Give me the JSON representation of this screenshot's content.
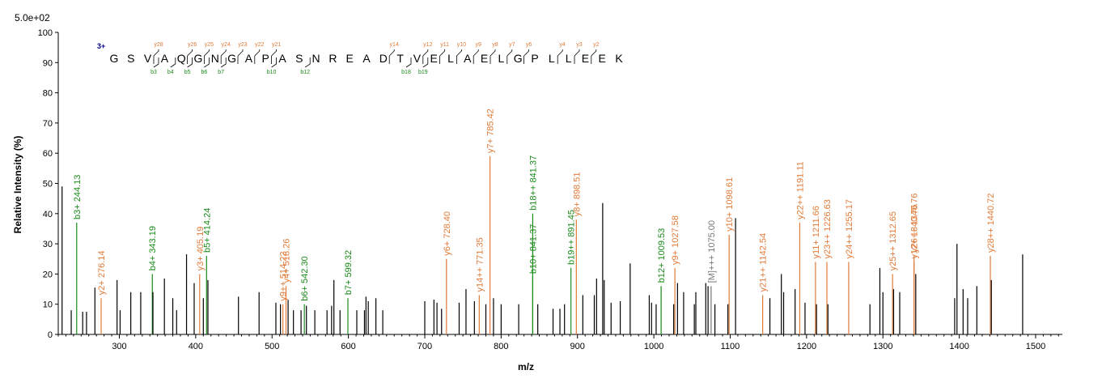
{
  "colors": {
    "y_ion": "#e07b39",
    "b_ion": "#1a8a1a",
    "other": "#000000",
    "precursor": "#777777",
    "charge": "#00008b"
  },
  "chart_data": {
    "type": "bar",
    "scale_label": "5.0e+02",
    "xlabel": "m/z",
    "ylabel": "Relative   Intensity (%)",
    "xlim": [
      220,
      1535
    ],
    "ylim": [
      0,
      100
    ],
    "x_ticks": [
      300,
      400,
      500,
      600,
      700,
      800,
      900,
      1000,
      1100,
      1200,
      1300,
      1400,
      1500
    ],
    "y_ticks": [
      0,
      10,
      20,
      30,
      40,
      50,
      60,
      70,
      80,
      90,
      100
    ],
    "peptide": {
      "charge_label": "3+",
      "sequence": [
        "G",
        "S",
        "V",
        "A",
        "Q",
        "G",
        "N",
        "G",
        "A",
        "P",
        "A",
        "S",
        "N",
        "R",
        "E",
        "A",
        "D",
        "T",
        "V",
        "E",
        "L",
        "A",
        "E",
        "L",
        "G",
        "P",
        "L",
        "L",
        "E",
        "E",
        "K"
      ],
      "y_ions": [
        {
          "after": 3,
          "label": "y28"
        },
        {
          "after": 5,
          "label": "y26"
        },
        {
          "after": 6,
          "label": "y25"
        },
        {
          "after": 7,
          "label": "y24"
        },
        {
          "after": 8,
          "label": "y23"
        },
        {
          "after": 9,
          "label": "y22"
        },
        {
          "after": 10,
          "label": "y21"
        },
        {
          "after": 17,
          "label": "y14"
        },
        {
          "after": 19,
          "label": "y12"
        },
        {
          "after": 20,
          "label": "y11"
        },
        {
          "after": 21,
          "label": "y10"
        },
        {
          "after": 22,
          "label": "y9"
        },
        {
          "after": 23,
          "label": "y8"
        },
        {
          "after": 24,
          "label": "y7"
        },
        {
          "after": 25,
          "label": "y6"
        },
        {
          "after": 27,
          "label": "y4"
        },
        {
          "after": 28,
          "label": "y3"
        },
        {
          "after": 29,
          "label": "y2"
        }
      ],
      "b_ions": [
        {
          "after": 3,
          "label": "b3"
        },
        {
          "after": 4,
          "label": "b4"
        },
        {
          "after": 5,
          "label": "b5"
        },
        {
          "after": 6,
          "label": "b6"
        },
        {
          "after": 7,
          "label": "b7"
        },
        {
          "after": 10,
          "label": "b10"
        },
        {
          "after": 12,
          "label": "b12"
        },
        {
          "after": 18,
          "label": "b18"
        },
        {
          "after": 19,
          "label": "b19"
        }
      ]
    },
    "series": [
      {
        "name": "y ions",
        "kind": "y",
        "points": [
          {
            "x": 276.14,
            "y": 12,
            "label": "y2+ 276.14"
          },
          {
            "x": 405.19,
            "y": 20,
            "label": "y3+ 405.19"
          },
          {
            "x": 514.22,
            "y": 10,
            "label": "y9++ 514.22"
          },
          {
            "x": 518.26,
            "y": 16,
            "label": "y4+ 518.26"
          },
          {
            "x": 728.4,
            "y": 25,
            "label": "y6+ 728.40"
          },
          {
            "x": 771.35,
            "y": 13,
            "label": "y14++ 771.35"
          },
          {
            "x": 785.42,
            "y": 59,
            "label": "y7+ 785.42"
          },
          {
            "x": 898.51,
            "y": 38,
            "label": "y8+ 898.51"
          },
          {
            "x": 1027.58,
            "y": 22,
            "label": "y9+ 1027.58"
          },
          {
            "x": 1098.61,
            "y": 33,
            "label": "y10+ 1098.61"
          },
          {
            "x": 1142.54,
            "y": 13,
            "label": "y21++ 1142.54"
          },
          {
            "x": 1191.11,
            "y": 37,
            "label": "y22++ 1191.11"
          },
          {
            "x": 1211.66,
            "y": 24,
            "label": "y11+ 1211.66"
          },
          {
            "x": 1226.63,
            "y": 24,
            "label": "y23++ 1226.63"
          },
          {
            "x": 1255.17,
            "y": 24,
            "label": "y24++ 1255.17"
          },
          {
            "x": 1312.65,
            "y": 20,
            "label": "y25++ 1312.65"
          },
          {
            "x": 1340.76,
            "y": 24,
            "label": "y12+ 1340.76"
          },
          {
            "x": 1340.76,
            "y": 26,
            "label": "y26++ 1340.76"
          },
          {
            "x": 1440.72,
            "y": 26,
            "label": "y28++ 1440.72"
          }
        ]
      },
      {
        "name": "b ions",
        "kind": "b",
        "points": [
          {
            "x": 244.13,
            "y": 37,
            "label": "b3+ 244.13"
          },
          {
            "x": 343.19,
            "y": 20,
            "label": "b4+ 343.19"
          },
          {
            "x": 414.24,
            "y": 26,
            "label": "b5+ 414.24"
          },
          {
            "x": 542.3,
            "y": 10,
            "label": "b6+ 542.30"
          },
          {
            "x": 599.32,
            "y": 12,
            "label": "b7+ 599.32"
          },
          {
            "x": 841.37,
            "y": 19,
            "label": "b10+ 841.37"
          },
          {
            "x": 841.37,
            "y": 40,
            "label": "b18++ 841.37"
          },
          {
            "x": 891.45,
            "y": 22,
            "label": "b19++ 891.45"
          },
          {
            "x": 1009.53,
            "y": 16,
            "label": "b12+ 1009.53"
          }
        ]
      },
      {
        "name": "precursor",
        "kind": "precursor",
        "points": [
          {
            "x": 1075.0,
            "y": 16,
            "label": "[M]+++ 1075.00"
          }
        ]
      },
      {
        "name": "other peaks",
        "kind": "other",
        "points": [
          {
            "x": 225,
            "y": 49
          },
          {
            "x": 237,
            "y": 8
          },
          {
            "x": 252,
            "y": 7.5
          },
          {
            "x": 257,
            "y": 7.5
          },
          {
            "x": 268,
            "y": 15.5
          },
          {
            "x": 297,
            "y": 18
          },
          {
            "x": 301,
            "y": 8
          },
          {
            "x": 315,
            "y": 14
          },
          {
            "x": 328,
            "y": 14
          },
          {
            "x": 344,
            "y": 14
          },
          {
            "x": 359,
            "y": 18.5
          },
          {
            "x": 370,
            "y": 12
          },
          {
            "x": 375,
            "y": 8
          },
          {
            "x": 388,
            "y": 26.5
          },
          {
            "x": 398,
            "y": 17
          },
          {
            "x": 410,
            "y": 12
          },
          {
            "x": 416,
            "y": 18
          },
          {
            "x": 456,
            "y": 12.5
          },
          {
            "x": 483,
            "y": 14
          },
          {
            "x": 505,
            "y": 10.5
          },
          {
            "x": 511,
            "y": 10
          },
          {
            "x": 521,
            "y": 11.5
          },
          {
            "x": 528,
            "y": 8
          },
          {
            "x": 538,
            "y": 8
          },
          {
            "x": 545,
            "y": 9.5
          },
          {
            "x": 556,
            "y": 8
          },
          {
            "x": 572,
            "y": 8
          },
          {
            "x": 578,
            "y": 9.5
          },
          {
            "x": 581,
            "y": 18
          },
          {
            "x": 589,
            "y": 8
          },
          {
            "x": 611,
            "y": 8
          },
          {
            "x": 621,
            "y": 8
          },
          {
            "x": 623,
            "y": 12.5
          },
          {
            "x": 626,
            "y": 11
          },
          {
            "x": 636,
            "y": 12
          },
          {
            "x": 645,
            "y": 8
          },
          {
            "x": 700,
            "y": 11
          },
          {
            "x": 712,
            "y": 11.5
          },
          {
            "x": 716,
            "y": 10.5
          },
          {
            "x": 722,
            "y": 8.5
          },
          {
            "x": 745,
            "y": 10.5
          },
          {
            "x": 754,
            "y": 15
          },
          {
            "x": 765,
            "y": 11
          },
          {
            "x": 780,
            "y": 10
          },
          {
            "x": 790,
            "y": 12
          },
          {
            "x": 800,
            "y": 10
          },
          {
            "x": 823,
            "y": 10
          },
          {
            "x": 848,
            "y": 10
          },
          {
            "x": 868,
            "y": 8.5
          },
          {
            "x": 877,
            "y": 8.5
          },
          {
            "x": 883,
            "y": 10
          },
          {
            "x": 907,
            "y": 13
          },
          {
            "x": 922,
            "y": 13
          },
          {
            "x": 925,
            "y": 18.5
          },
          {
            "x": 933,
            "y": 43.5
          },
          {
            "x": 935,
            "y": 18
          },
          {
            "x": 944,
            "y": 10.5
          },
          {
            "x": 956,
            "y": 11
          },
          {
            "x": 969,
            "y": 23.5
          },
          {
            "x": 994,
            "y": 13
          },
          {
            "x": 997,
            "y": 10.5
          },
          {
            "x": 1003,
            "y": 10
          },
          {
            "x": 1026,
            "y": 10
          },
          {
            "x": 1031,
            "y": 17
          },
          {
            "x": 1039,
            "y": 14
          },
          {
            "x": 1053,
            "y": 10
          },
          {
            "x": 1055,
            "y": 14
          },
          {
            "x": 1068,
            "y": 17
          },
          {
            "x": 1071,
            "y": 16
          },
          {
            "x": 1080,
            "y": 10
          },
          {
            "x": 1097,
            "y": 10
          },
          {
            "x": 1107,
            "y": 38.5
          },
          {
            "x": 1152,
            "y": 12
          },
          {
            "x": 1167,
            "y": 20
          },
          {
            "x": 1170,
            "y": 14
          },
          {
            "x": 1185,
            "y": 15
          },
          {
            "x": 1198,
            "y": 10.5
          },
          {
            "x": 1213,
            "y": 10
          },
          {
            "x": 1228,
            "y": 10
          },
          {
            "x": 1283,
            "y": 10
          },
          {
            "x": 1296,
            "y": 22
          },
          {
            "x": 1300,
            "y": 14
          },
          {
            "x": 1314,
            "y": 15
          },
          {
            "x": 1322,
            "y": 14
          },
          {
            "x": 1343,
            "y": 20
          },
          {
            "x": 1394,
            "y": 12
          },
          {
            "x": 1397,
            "y": 30
          },
          {
            "x": 1405,
            "y": 15
          },
          {
            "x": 1411,
            "y": 12
          },
          {
            "x": 1423,
            "y": 16
          },
          {
            "x": 1442,
            "y": 18
          },
          {
            "x": 1483,
            "y": 26.5
          }
        ]
      }
    ]
  }
}
